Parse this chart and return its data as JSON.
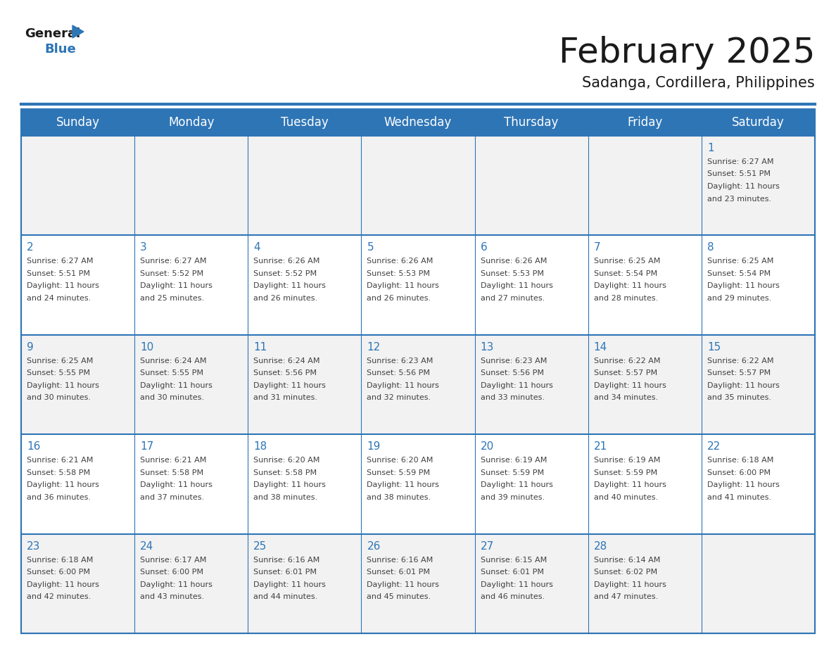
{
  "title": "February 2025",
  "subtitle": "Sadanga, Cordillera, Philippines",
  "days_of_week": [
    "Sunday",
    "Monday",
    "Tuesday",
    "Wednesday",
    "Thursday",
    "Friday",
    "Saturday"
  ],
  "header_bg": "#2E75B6",
  "header_text": "#FFFFFF",
  "cell_bg_odd": "#F2F2F2",
  "cell_bg_even": "#FFFFFF",
  "border_color": "#2E75B6",
  "day_num_color": "#2E75B6",
  "info_color": "#404040",
  "title_color": "#1a1a1a",
  "subtitle_color": "#1a1a1a",
  "calendar_data": [
    [
      null,
      null,
      null,
      null,
      null,
      null,
      {
        "day": 1,
        "rise": "6:27 AM",
        "set": "5:51 PM",
        "hours": 11,
        "mins": 23
      }
    ],
    [
      {
        "day": 2,
        "rise": "6:27 AM",
        "set": "5:51 PM",
        "hours": 11,
        "mins": 24
      },
      {
        "day": 3,
        "rise": "6:27 AM",
        "set": "5:52 PM",
        "hours": 11,
        "mins": 25
      },
      {
        "day": 4,
        "rise": "6:26 AM",
        "set": "5:52 PM",
        "hours": 11,
        "mins": 26
      },
      {
        "day": 5,
        "rise": "6:26 AM",
        "set": "5:53 PM",
        "hours": 11,
        "mins": 26
      },
      {
        "day": 6,
        "rise": "6:26 AM",
        "set": "5:53 PM",
        "hours": 11,
        "mins": 27
      },
      {
        "day": 7,
        "rise": "6:25 AM",
        "set": "5:54 PM",
        "hours": 11,
        "mins": 28
      },
      {
        "day": 8,
        "rise": "6:25 AM",
        "set": "5:54 PM",
        "hours": 11,
        "mins": 29
      }
    ],
    [
      {
        "day": 9,
        "rise": "6:25 AM",
        "set": "5:55 PM",
        "hours": 11,
        "mins": 30
      },
      {
        "day": 10,
        "rise": "6:24 AM",
        "set": "5:55 PM",
        "hours": 11,
        "mins": 30
      },
      {
        "day": 11,
        "rise": "6:24 AM",
        "set": "5:56 PM",
        "hours": 11,
        "mins": 31
      },
      {
        "day": 12,
        "rise": "6:23 AM",
        "set": "5:56 PM",
        "hours": 11,
        "mins": 32
      },
      {
        "day": 13,
        "rise": "6:23 AM",
        "set": "5:56 PM",
        "hours": 11,
        "mins": 33
      },
      {
        "day": 14,
        "rise": "6:22 AM",
        "set": "5:57 PM",
        "hours": 11,
        "mins": 34
      },
      {
        "day": 15,
        "rise": "6:22 AM",
        "set": "5:57 PM",
        "hours": 11,
        "mins": 35
      }
    ],
    [
      {
        "day": 16,
        "rise": "6:21 AM",
        "set": "5:58 PM",
        "hours": 11,
        "mins": 36
      },
      {
        "day": 17,
        "rise": "6:21 AM",
        "set": "5:58 PM",
        "hours": 11,
        "mins": 37
      },
      {
        "day": 18,
        "rise": "6:20 AM",
        "set": "5:58 PM",
        "hours": 11,
        "mins": 38
      },
      {
        "day": 19,
        "rise": "6:20 AM",
        "set": "5:59 PM",
        "hours": 11,
        "mins": 38
      },
      {
        "day": 20,
        "rise": "6:19 AM",
        "set": "5:59 PM",
        "hours": 11,
        "mins": 39
      },
      {
        "day": 21,
        "rise": "6:19 AM",
        "set": "5:59 PM",
        "hours": 11,
        "mins": 40
      },
      {
        "day": 22,
        "rise": "6:18 AM",
        "set": "6:00 PM",
        "hours": 11,
        "mins": 41
      }
    ],
    [
      {
        "day": 23,
        "rise": "6:18 AM",
        "set": "6:00 PM",
        "hours": 11,
        "mins": 42
      },
      {
        "day": 24,
        "rise": "6:17 AM",
        "set": "6:00 PM",
        "hours": 11,
        "mins": 43
      },
      {
        "day": 25,
        "rise": "6:16 AM",
        "set": "6:01 PM",
        "hours": 11,
        "mins": 44
      },
      {
        "day": 26,
        "rise": "6:16 AM",
        "set": "6:01 PM",
        "hours": 11,
        "mins": 45
      },
      {
        "day": 27,
        "rise": "6:15 AM",
        "set": "6:01 PM",
        "hours": 11,
        "mins": 46
      },
      {
        "day": 28,
        "rise": "6:14 AM",
        "set": "6:02 PM",
        "hours": 11,
        "mins": 47
      },
      null
    ]
  ],
  "logo_text_general": "General",
  "logo_text_blue": "Blue",
  "logo_triangle_color": "#2E75B6"
}
